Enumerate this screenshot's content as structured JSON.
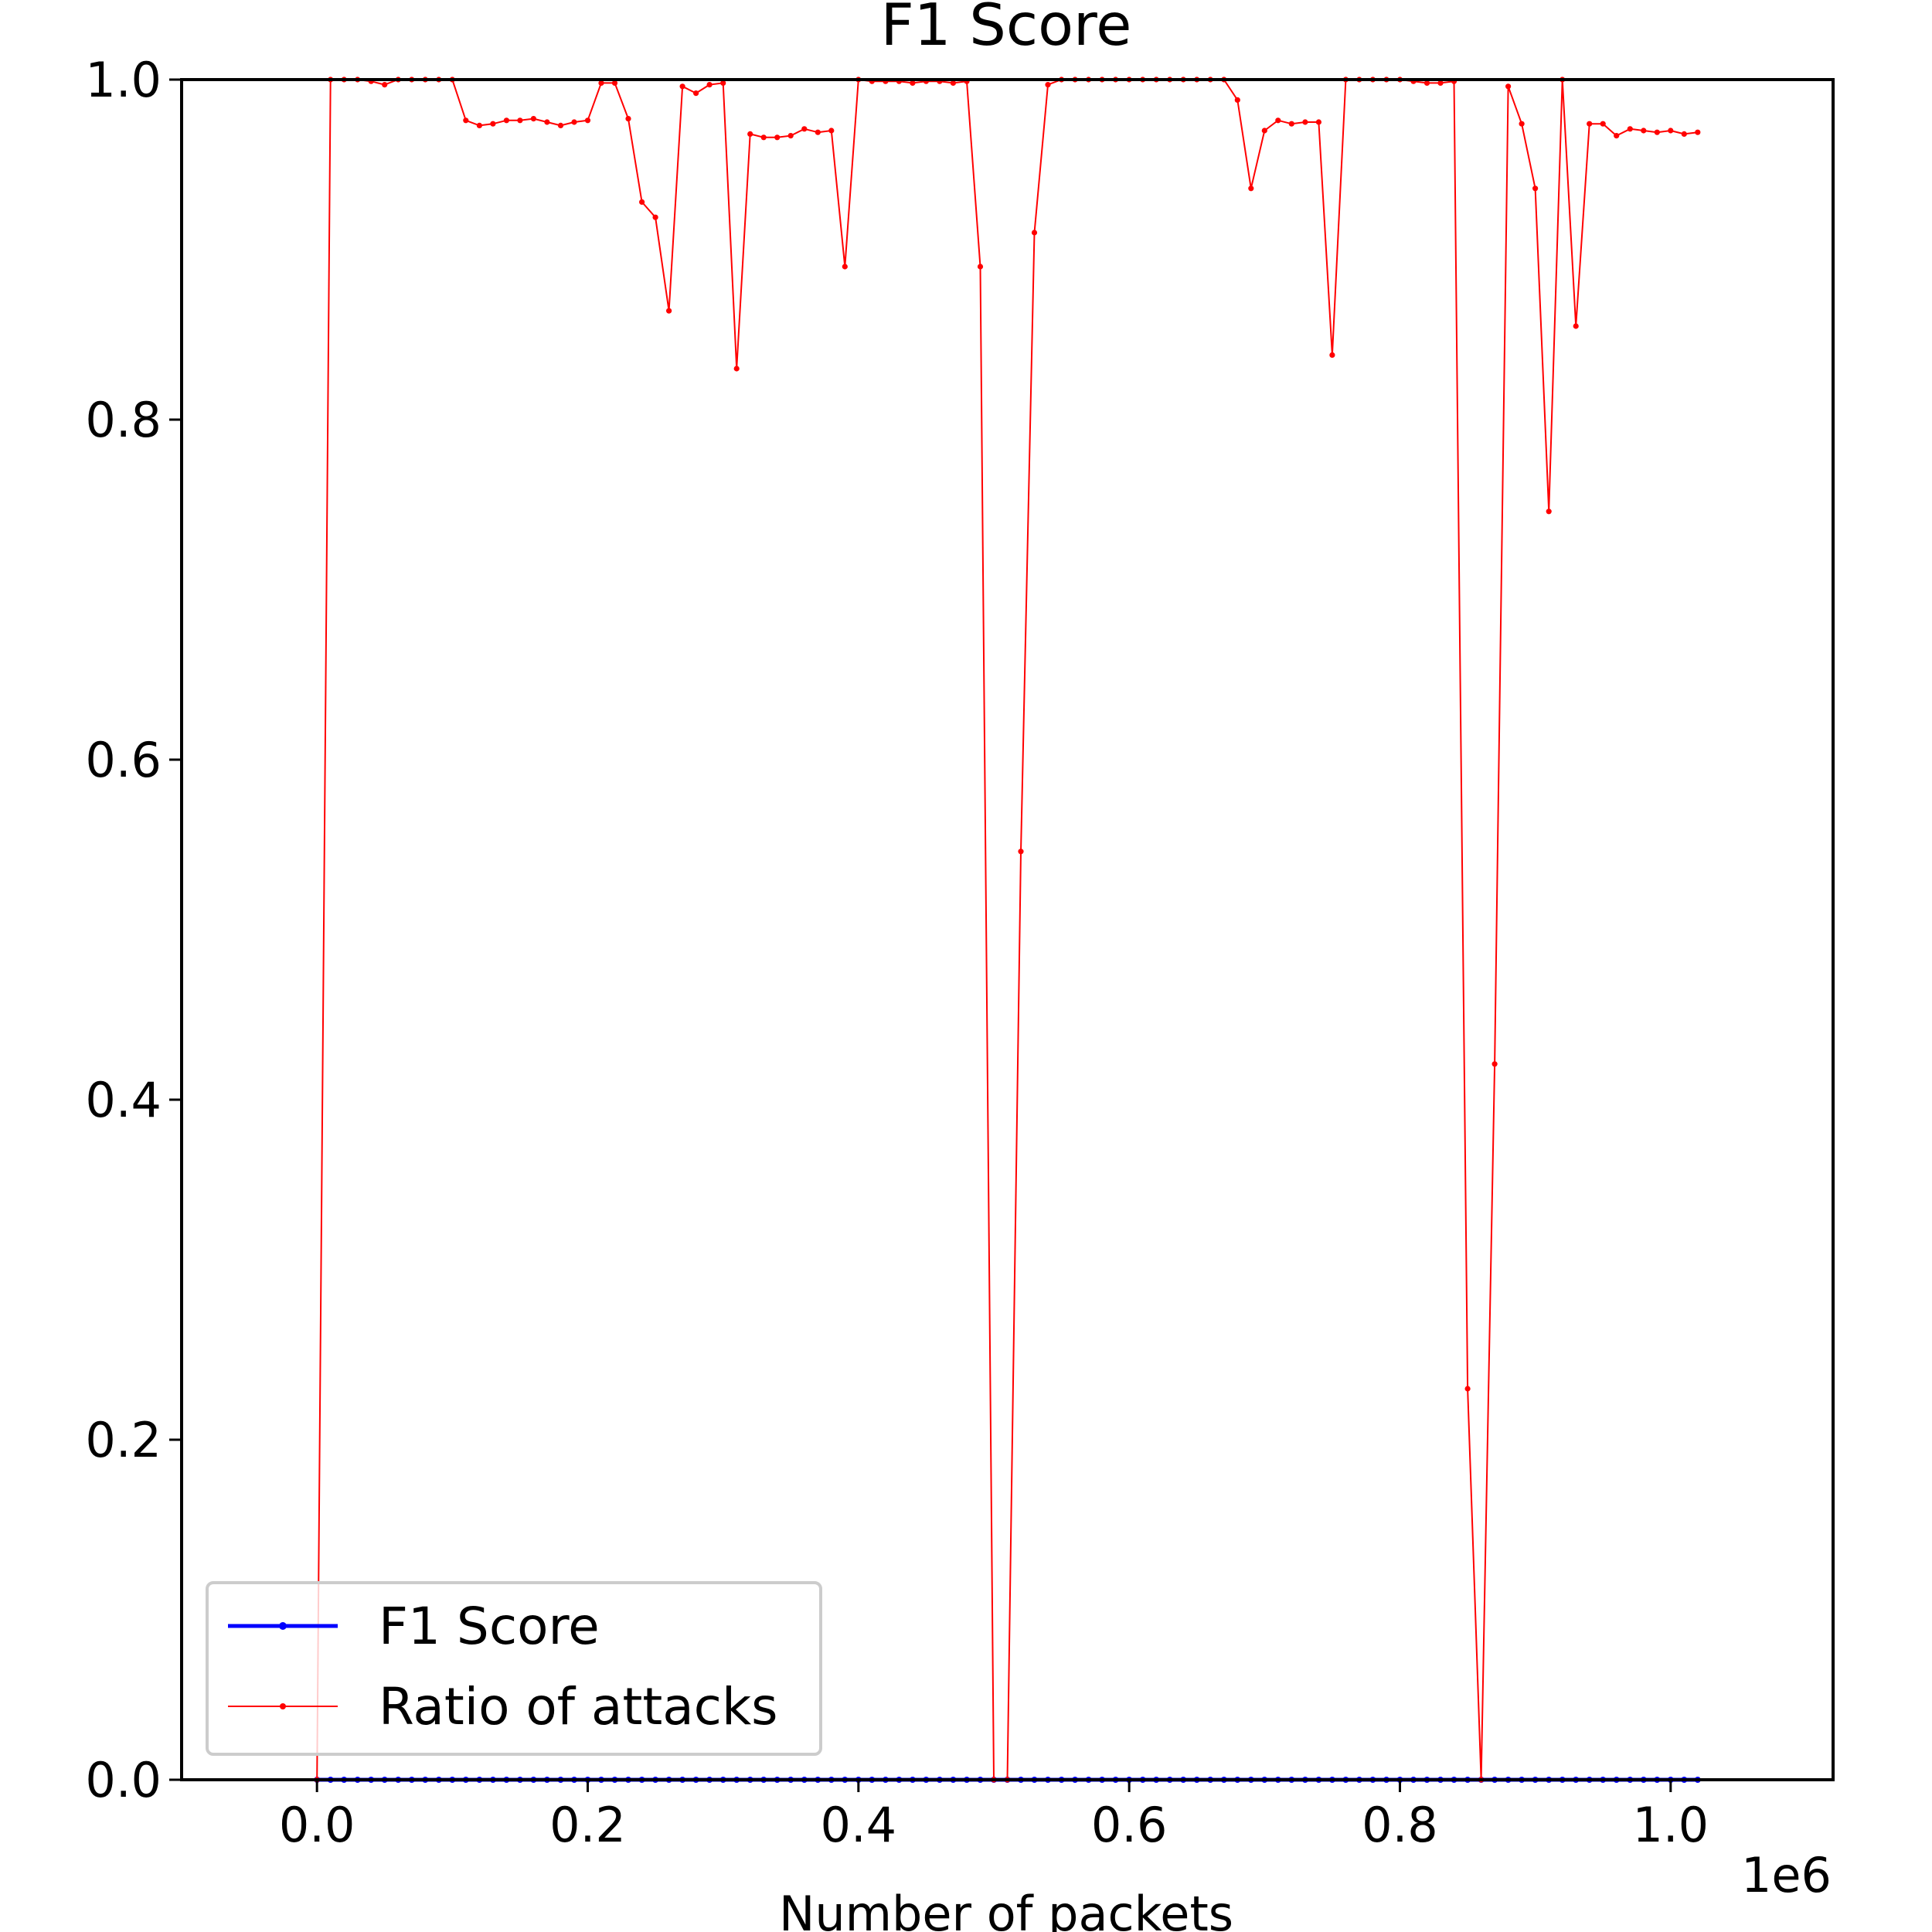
{
  "chart_data": {
    "type": "line",
    "title": "F1 Score",
    "xlabel": "Number of packets",
    "ylabel": "",
    "x_offset_label": "1e6",
    "xlim": [
      -0.1,
      1.12
    ],
    "ylim": [
      0.0,
      1.0
    ],
    "x_ticks": [
      0.0,
      0.2,
      0.4,
      0.6,
      0.8,
      1.0
    ],
    "x_tick_labels": [
      "0.0",
      "0.2",
      "0.4",
      "0.6",
      "0.8",
      "1.0"
    ],
    "y_ticks": [
      0.0,
      0.2,
      0.4,
      0.6,
      0.8,
      1.0
    ],
    "y_tick_labels": [
      "0.0",
      "0.2",
      "0.4",
      "0.6",
      "0.8",
      "1.0"
    ],
    "grid": false,
    "legend_position": "lower-left",
    "x": [
      0.0,
      0.01,
      0.02,
      0.03,
      0.04,
      0.05,
      0.06,
      0.07,
      0.08,
      0.09,
      0.1,
      0.11,
      0.12,
      0.13,
      0.14,
      0.15,
      0.16,
      0.17,
      0.18,
      0.19,
      0.2,
      0.21,
      0.22,
      0.23,
      0.24,
      0.25,
      0.26,
      0.27,
      0.28,
      0.29,
      0.3,
      0.31,
      0.32,
      0.33,
      0.34,
      0.35,
      0.36,
      0.37,
      0.38,
      0.39,
      0.4,
      0.41,
      0.42,
      0.43,
      0.44,
      0.45,
      0.46,
      0.47,
      0.48,
      0.49,
      0.5,
      0.51,
      0.52,
      0.53,
      0.54,
      0.55,
      0.56,
      0.57,
      0.58,
      0.59,
      0.6,
      0.61,
      0.62,
      0.63,
      0.64,
      0.65,
      0.66,
      0.67,
      0.68,
      0.69,
      0.7,
      0.71,
      0.72,
      0.73,
      0.74,
      0.75,
      0.76,
      0.77,
      0.78,
      0.79,
      0.8,
      0.81,
      0.82,
      0.83,
      0.84,
      0.85,
      0.86,
      0.87,
      0.88,
      0.89,
      0.9,
      0.91,
      0.92,
      0.93,
      0.94,
      0.95,
      0.96,
      0.97,
      0.98,
      0.99,
      1.0,
      1.01,
      1.02
    ],
    "series": [
      {
        "name": "F1 Score",
        "color": "#0000ff",
        "values": [
          0,
          0,
          0,
          0,
          0,
          0,
          0,
          0,
          0,
          0,
          0,
          0,
          0,
          0,
          0,
          0,
          0,
          0,
          0,
          0,
          0,
          0,
          0,
          0,
          0,
          0,
          0,
          0,
          0,
          0,
          0,
          0,
          0,
          0,
          0,
          0,
          0,
          0,
          0,
          0,
          0,
          0,
          0,
          0,
          0,
          0,
          0,
          0,
          0,
          0,
          0,
          0,
          0,
          0,
          0,
          0,
          0,
          0,
          0,
          0,
          0,
          0,
          0,
          0,
          0,
          0,
          0,
          0,
          0,
          0,
          0,
          0,
          0,
          0,
          0,
          0,
          0,
          0,
          0,
          0,
          0,
          0,
          0,
          0,
          0,
          0,
          0,
          0,
          0,
          0,
          0,
          0,
          0,
          0,
          0,
          0,
          0,
          0,
          0,
          0,
          0,
          0,
          0
        ]
      },
      {
        "name": "Ratio of attacks",
        "color": "#ff0000",
        "values": [
          0.0,
          1.0,
          1.0,
          1.0,
          0.999,
          0.997,
          1.0,
          1.0,
          1.0,
          1.0,
          1.0,
          0.976,
          0.973,
          0.974,
          0.976,
          0.976,
          0.977,
          0.975,
          0.973,
          0.975,
          0.976,
          0.998,
          0.998,
          0.977,
          0.928,
          0.919,
          0.864,
          0.996,
          0.992,
          0.997,
          0.998,
          0.83,
          0.968,
          0.966,
          0.966,
          0.967,
          0.971,
          0.969,
          0.97,
          0.89,
          1.0,
          0.999,
          0.999,
          0.999,
          0.998,
          0.999,
          0.999,
          0.998,
          0.999,
          0.89,
          0.0,
          0.0,
          0.546,
          0.91,
          0.997,
          1.0,
          1.0,
          1.0,
          1.0,
          1.0,
          1.0,
          1.0,
          1.0,
          1.0,
          1.0,
          1.0,
          1.0,
          1.0,
          0.988,
          0.936,
          0.97,
          0.976,
          0.974,
          0.975,
          0.975,
          0.838,
          1.0,
          1.0,
          1.0,
          1.0,
          1.0,
          0.999,
          0.998,
          0.998,
          0.999,
          0.23,
          0.0,
          0.421,
          0.996,
          0.974,
          0.936,
          0.746,
          1.0,
          0.855,
          0.974,
          0.974,
          0.967,
          0.971,
          0.97,
          0.969,
          0.97,
          0.968,
          0.969
        ]
      }
    ]
  }
}
